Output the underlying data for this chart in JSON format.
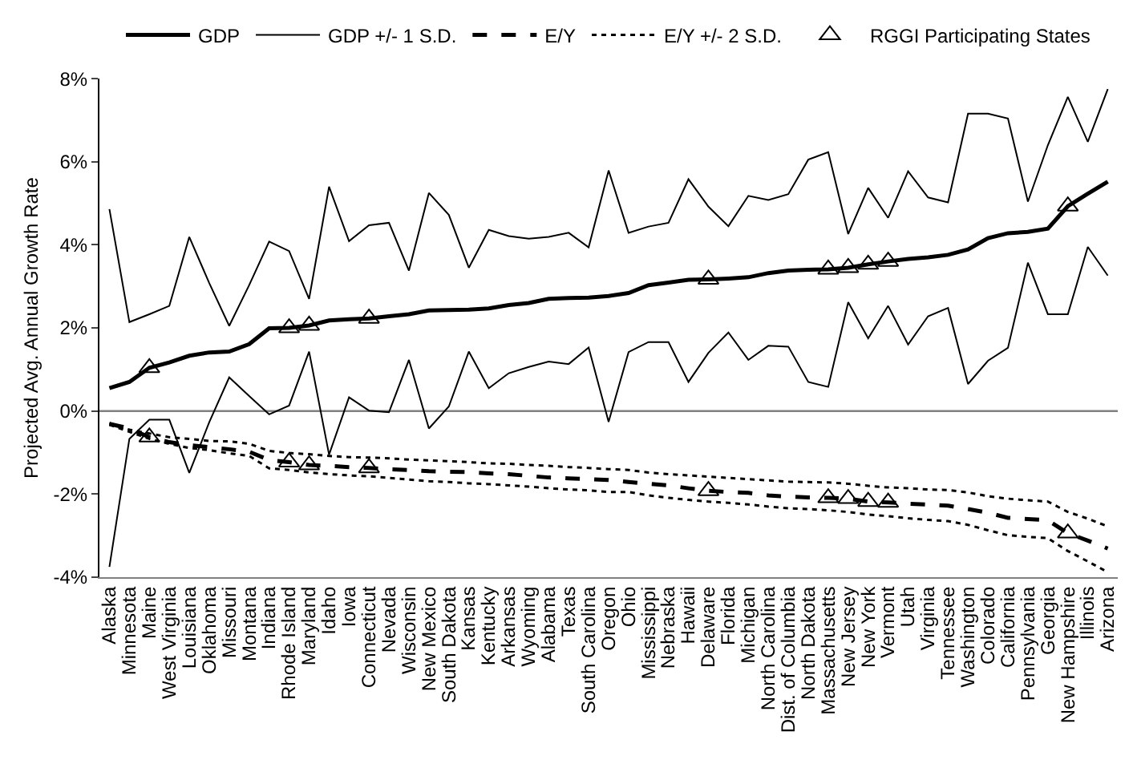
{
  "chart_data": {
    "type": "line",
    "ylabel": "Projected Avg. Annual Growth Rate",
    "categories": [
      "Alaska",
      "Minnesota",
      "Maine",
      "West Virginia",
      "Louisiana",
      "Oklahoma",
      "Missouri",
      "Montana",
      "Indiana",
      "Rhode Island",
      "Maryland",
      "Idaho",
      "Iowa",
      "Connecticut",
      "Nevada",
      "Wisconsin",
      "New Mexico",
      "South Dakota",
      "Kansas",
      "Kentucky",
      "Arkansas",
      "Wyoming",
      "Alabama",
      "Texas",
      "South Carolina",
      "Oregon",
      "Ohio",
      "Mississippi",
      "Nebraska",
      "Hawaii",
      "Delaware",
      "Florida",
      "Michigan",
      "North Carolina",
      "Dist. of Columbia",
      "North Dakota",
      "Massachusetts",
      "New Jersey",
      "New York",
      "Vermont",
      "Utah",
      "Virginia",
      "Tennessee",
      "Washington",
      "Colorado",
      "California",
      "Pennsylvania",
      "Georgia",
      "New Hampshire",
      "Illinois",
      "Arizona"
    ],
    "series": [
      {
        "name": "GDP",
        "color": "#000000",
        "line_style": "solid",
        "values": [
          0.55,
          0.7,
          1.04,
          1.17,
          1.33,
          1.41,
          1.43,
          1.61,
          1.99,
          2.0,
          2.06,
          2.18,
          2.21,
          2.23,
          2.28,
          2.33,
          2.42,
          2.43,
          2.44,
          2.47,
          2.55,
          2.6,
          2.7,
          2.72,
          2.73,
          2.77,
          2.84,
          3.03,
          3.09,
          3.16,
          3.17,
          3.19,
          3.22,
          3.32,
          3.38,
          3.4,
          3.41,
          3.45,
          3.53,
          3.6,
          3.66,
          3.7,
          3.76,
          3.89,
          4.16,
          4.28,
          4.31,
          4.39,
          4.93,
          5.23,
          5.52
        ]
      },
      {
        "name": "GDP +/- 1 S.D.",
        "color": "#000000",
        "line_style": "solid",
        "values": [
          4.86,
          2.14,
          2.33,
          2.53,
          4.19,
          3.08,
          2.05,
          3.03,
          4.08,
          3.85,
          2.7,
          5.4,
          4.09,
          4.47,
          4.53,
          3.38,
          5.25,
          4.72,
          3.45,
          4.36,
          4.21,
          4.15,
          4.19,
          4.29,
          3.94,
          5.79,
          4.29,
          4.44,
          4.53,
          5.58,
          4.92,
          4.45,
          5.18,
          5.08,
          5.22,
          6.05,
          6.23,
          4.26,
          5.37,
          4.65,
          5.77,
          5.14,
          5.02,
          7.16,
          7.16,
          7.04,
          5.04,
          6.4,
          7.56,
          6.48,
          7.75
        ]
      },
      {
        "color": "#000000",
        "line_style": "solid",
        "values": [
          -3.75,
          -0.67,
          -0.21,
          -0.21,
          -1.49,
          -0.27,
          0.81,
          0.36,
          -0.08,
          0.13,
          1.43,
          -1.05,
          0.33,
          0.01,
          -0.03,
          1.23,
          -0.42,
          0.11,
          1.43,
          0.55,
          0.91,
          1.06,
          1.19,
          1.13,
          1.53,
          -0.26,
          1.42,
          1.66,
          1.66,
          0.7,
          1.4,
          1.89,
          1.23,
          1.57,
          1.55,
          0.7,
          0.58,
          2.62,
          1.75,
          2.53,
          1.6,
          2.28,
          2.48,
          0.65,
          1.21,
          1.52,
          3.57,
          2.33,
          2.33,
          3.95,
          3.26
        ]
      },
      {
        "name": "E/Y",
        "color": "#000000",
        "line_style": "dashed",
        "values": [
          -0.31,
          -0.42,
          -0.63,
          -0.75,
          -0.82,
          -0.87,
          -0.92,
          -0.98,
          -1.18,
          -1.23,
          -1.3,
          -1.32,
          -1.35,
          -1.37,
          -1.4,
          -1.42,
          -1.45,
          -1.46,
          -1.47,
          -1.5,
          -1.52,
          -1.56,
          -1.6,
          -1.62,
          -1.64,
          -1.66,
          -1.71,
          -1.75,
          -1.79,
          -1.86,
          -1.92,
          -1.95,
          -1.97,
          -2.03,
          -2.06,
          -2.08,
          -2.09,
          -2.11,
          -2.18,
          -2.2,
          -2.23,
          -2.25,
          -2.28,
          -2.36,
          -2.45,
          -2.57,
          -2.6,
          -2.63,
          -2.94,
          -3.12,
          -3.31
        ]
      },
      {
        "name": "E/Y +/- 2 S.D.",
        "color": "#000000",
        "line_style": "dotted",
        "values": [
          -0.29,
          -0.45,
          -0.54,
          -0.63,
          -0.67,
          -0.72,
          -0.73,
          -0.79,
          -0.96,
          -1.01,
          -1.04,
          -1.08,
          -1.11,
          -1.12,
          -1.14,
          -1.17,
          -1.19,
          -1.21,
          -1.23,
          -1.26,
          -1.27,
          -1.3,
          -1.32,
          -1.35,
          -1.37,
          -1.4,
          -1.42,
          -1.48,
          -1.52,
          -1.55,
          -1.58,
          -1.61,
          -1.64,
          -1.67,
          -1.7,
          -1.71,
          -1.72,
          -1.75,
          -1.8,
          -1.84,
          -1.86,
          -1.89,
          -1.9,
          -1.96,
          -2.05,
          -2.11,
          -2.15,
          -2.18,
          -2.43,
          -2.59,
          -2.78
        ]
      },
      {
        "color": "#000000",
        "line_style": "dotted",
        "values": [
          -0.33,
          -0.5,
          -0.67,
          -0.79,
          -0.89,
          -0.94,
          -1.02,
          -1.08,
          -1.38,
          -1.42,
          -1.48,
          -1.52,
          -1.55,
          -1.57,
          -1.61,
          -1.65,
          -1.69,
          -1.71,
          -1.74,
          -1.76,
          -1.79,
          -1.82,
          -1.86,
          -1.89,
          -1.91,
          -1.95,
          -1.95,
          -2.03,
          -2.09,
          -2.14,
          -2.18,
          -2.21,
          -2.25,
          -2.3,
          -2.34,
          -2.36,
          -2.39,
          -2.43,
          -2.49,
          -2.53,
          -2.58,
          -2.62,
          -2.65,
          -2.74,
          -2.87,
          -2.99,
          -3.03,
          -3.06,
          -3.37,
          -3.62,
          -3.88
        ]
      },
      {
        "name": "RGGI Participating States",
        "type": "scatter",
        "marker": "triangle",
        "color": "#000000",
        "x": [
          "Maine",
          "Rhode Island",
          "Maryland",
          "Connecticut",
          "Delaware",
          "Massachusetts",
          "New Jersey",
          "New York",
          "Vermont",
          "New Hampshire",
          "Maine",
          "Rhode Island",
          "Maryland",
          "Connecticut",
          "Delaware",
          "Massachusetts",
          "New Jersey",
          "New York",
          "Vermont",
          "New Hampshire"
        ],
        "values": [
          1.04,
          2.0,
          2.06,
          2.23,
          3.17,
          3.41,
          3.45,
          3.53,
          3.6,
          4.93,
          -0.63,
          -1.23,
          -1.3,
          -1.37,
          -1.92,
          -2.09,
          -2.11,
          -2.18,
          -2.2,
          -2.94
        ]
      }
    ],
    "ylim": [
      -4,
      8
    ],
    "yticks": [
      {
        "value": -4,
        "label": "-4%"
      },
      {
        "value": -2,
        "label": "-2%"
      },
      {
        "value": 0,
        "label": "0%"
      },
      {
        "value": 2,
        "label": "2%"
      },
      {
        "value": 4,
        "label": "4%"
      },
      {
        "value": 6,
        "label": "6%"
      },
      {
        "value": 8,
        "label": "8%"
      }
    ],
    "ref_lines": [
      {
        "axis": "y",
        "value": 0,
        "color": "#808080"
      }
    ],
    "grid": false,
    "legend": "top"
  }
}
